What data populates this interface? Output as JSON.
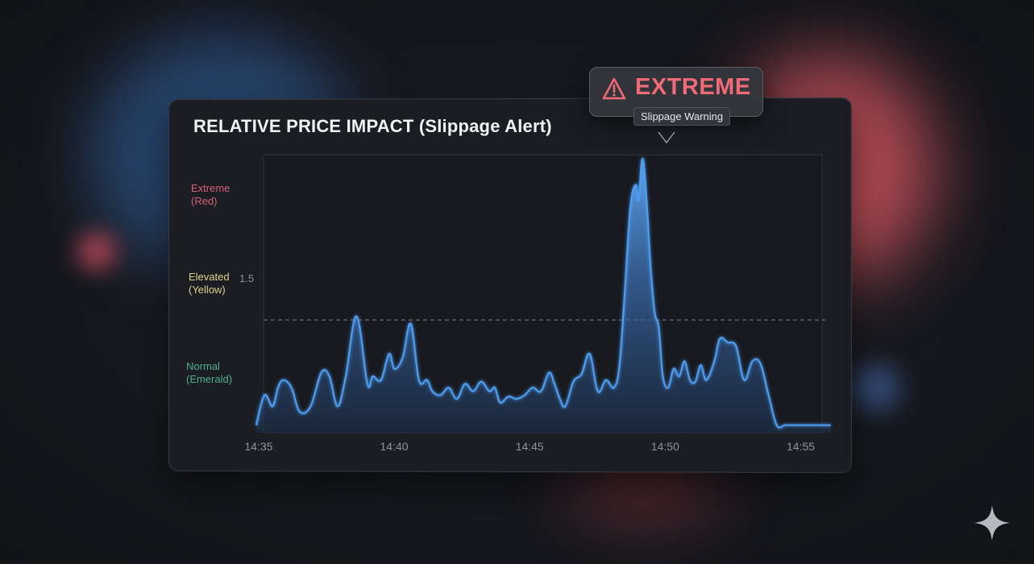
{
  "chart_data": {
    "type": "area",
    "title": "RELATIVE PRICE IMPACT (Slippage Alert)",
    "y_band_labels": [
      {
        "text": "Extreme\n(Red)",
        "color": "#d4607a"
      },
      {
        "text": "Elevated\n(Yellow)",
        "color": "#ddd38f"
      },
      {
        "text": "Normal\n(Emerald)",
        "color": "#4fb08d"
      }
    ],
    "threshold": {
      "value": 1.5,
      "label": "1.5"
    },
    "ylim": [
      0,
      3.7
    ],
    "x_ticks": [
      "14:35",
      "14:40",
      "14:45",
      "14:50",
      "14:55"
    ],
    "xlim_minutes": [
      34.9,
      56.1
    ],
    "series": [
      {
        "color": "#4e9cf0",
        "x_minutes": [
          34.9,
          35.2,
          35.5,
          35.7,
          35.9,
          36.2,
          36.5,
          36.9,
          37.3,
          37.6,
          37.9,
          38.2,
          38.6,
          39.0,
          39.2,
          39.5,
          39.8,
          40.0,
          40.3,
          40.6,
          40.9,
          41.2,
          41.4,
          41.7,
          42.0,
          42.3,
          42.6,
          42.9,
          43.2,
          43.5,
          43.7,
          43.9,
          44.2,
          44.5,
          44.8,
          45.1,
          45.4,
          45.7,
          45.9,
          46.1,
          46.3,
          46.6,
          46.9,
          47.2,
          47.5,
          47.8,
          48.1,
          48.3,
          48.5,
          48.7,
          48.9,
          49.0,
          49.15,
          49.3,
          49.45,
          49.6,
          49.75,
          49.9,
          50.1,
          50.3,
          50.5,
          50.7,
          50.9,
          51.1,
          51.3,
          51.5,
          51.8,
          52.0,
          52.3,
          52.6,
          52.9,
          53.2,
          53.5,
          53.8,
          54.1,
          54.4,
          54.6,
          54.9,
          55.2,
          55.4,
          55.7,
          56.0,
          56.1
        ],
        "values": [
          0.1,
          0.5,
          0.35,
          0.6,
          0.7,
          0.6,
          0.28,
          0.35,
          0.8,
          0.75,
          0.35,
          0.75,
          1.55,
          0.65,
          0.75,
          0.7,
          1.05,
          0.85,
          1.0,
          1.45,
          0.7,
          0.7,
          0.55,
          0.5,
          0.6,
          0.45,
          0.65,
          0.55,
          0.68,
          0.55,
          0.6,
          0.4,
          0.48,
          0.45,
          0.5,
          0.6,
          0.55,
          0.8,
          0.65,
          0.45,
          0.35,
          0.68,
          0.78,
          1.05,
          0.55,
          0.7,
          0.6,
          0.9,
          1.9,
          3.0,
          3.3,
          3.1,
          3.65,
          3.1,
          2.2,
          1.6,
          1.4,
          0.75,
          0.6,
          0.85,
          0.75,
          0.95,
          0.7,
          0.68,
          0.9,
          0.7,
          0.95,
          1.25,
          1.2,
          1.15,
          0.7,
          0.95,
          0.92,
          0.5,
          0.1,
          0.1,
          0.1,
          0.1,
          0.1,
          0.1,
          0.1,
          0.1,
          0.1
        ]
      }
    ]
  },
  "badge": {
    "label": "EXTREME",
    "tooltip": "Slippage Warning",
    "icon": "warning-triangle-icon",
    "accent": "#f06a78"
  },
  "colors": {
    "area_top": "#5ea7f5",
    "area_bottom": "#1e3353",
    "threshold_line": "#6c7079"
  }
}
